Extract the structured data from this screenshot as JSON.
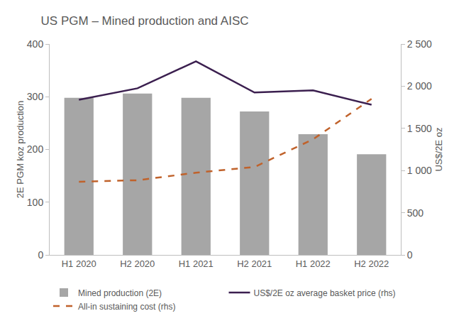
{
  "chart_data": {
    "type": "bar",
    "title": "US PGM – Mined production and AISC",
    "y_label": "2E PGM koz production",
    "y2_label": "US$/2E oz",
    "categories": [
      "H1 2020",
      "H2 2020",
      "H1 2021",
      "H2 2021",
      "H1 2022",
      "H2 2022"
    ],
    "series": [
      {
        "name": "Mined production (2E)",
        "type": "bar",
        "color": "#a6a6a6",
        "values": [
          298,
          306,
          298,
          272,
          229,
          191
        ]
      },
      {
        "name": "US$/2E oz average basket price (rhs)",
        "type": "line",
        "axis": "y2",
        "color": "#3b1f4f",
        "line_style": "solid",
        "values": [
          1840,
          1975,
          2295,
          1925,
          1950,
          1780
        ]
      },
      {
        "name": "All-in sustaining cost (rhs)",
        "type": "line",
        "axis": "y2",
        "color": "#c0622b",
        "line_style": "dash",
        "values": [
          868,
          885,
          975,
          1042,
          1370,
          1850
        ]
      }
    ],
    "ylim": [
      0,
      400
    ],
    "yticks": [
      0,
      100,
      200,
      300,
      400
    ],
    "y2lim": [
      0,
      2500
    ],
    "y2ticks": [
      0,
      500,
      {
        "value": 1000,
        "label": "1 000"
      },
      {
        "value": 1500,
        "label": "1 500"
      },
      {
        "value": 2000,
        "label": "2 000"
      },
      {
        "value": 2500,
        "label": "2 500"
      }
    ],
    "grid": false,
    "legend": "bottom"
  }
}
